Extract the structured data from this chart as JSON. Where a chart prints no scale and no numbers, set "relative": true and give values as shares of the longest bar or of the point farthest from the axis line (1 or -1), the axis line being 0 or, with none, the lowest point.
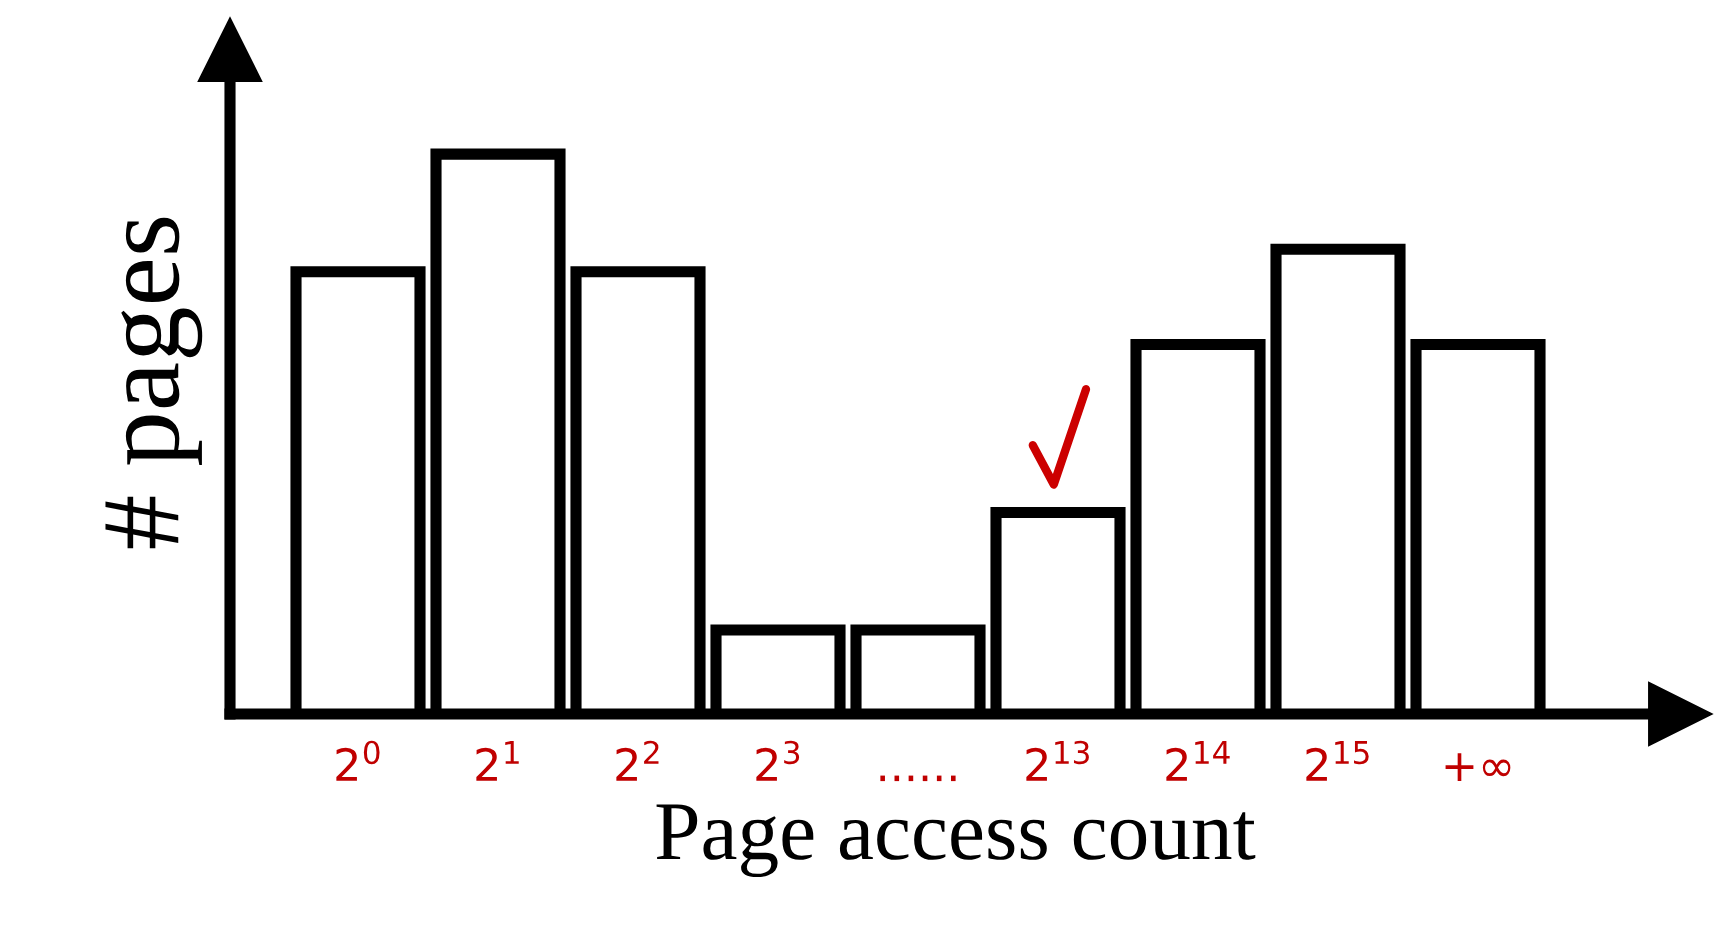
{
  "chart_data": {
    "type": "bar",
    "relative": true,
    "xlabel": "Page access count",
    "ylabel": "# pages",
    "categories": [
      "2$^{0}$",
      "2$^{1}$",
      "2$^{2}$",
      "2$^{3}$",
      "......",
      "2$^{13}$",
      "2$^{14}$",
      "2$^{15}$",
      "+∞"
    ],
    "values": [
      0.79,
      1,
      0.79,
      0.15,
      0.15,
      0.36,
      0.66,
      0.83,
      0.66
    ],
    "color": "#ffffff",
    "grid": false,
    "legend": false
  }
}
